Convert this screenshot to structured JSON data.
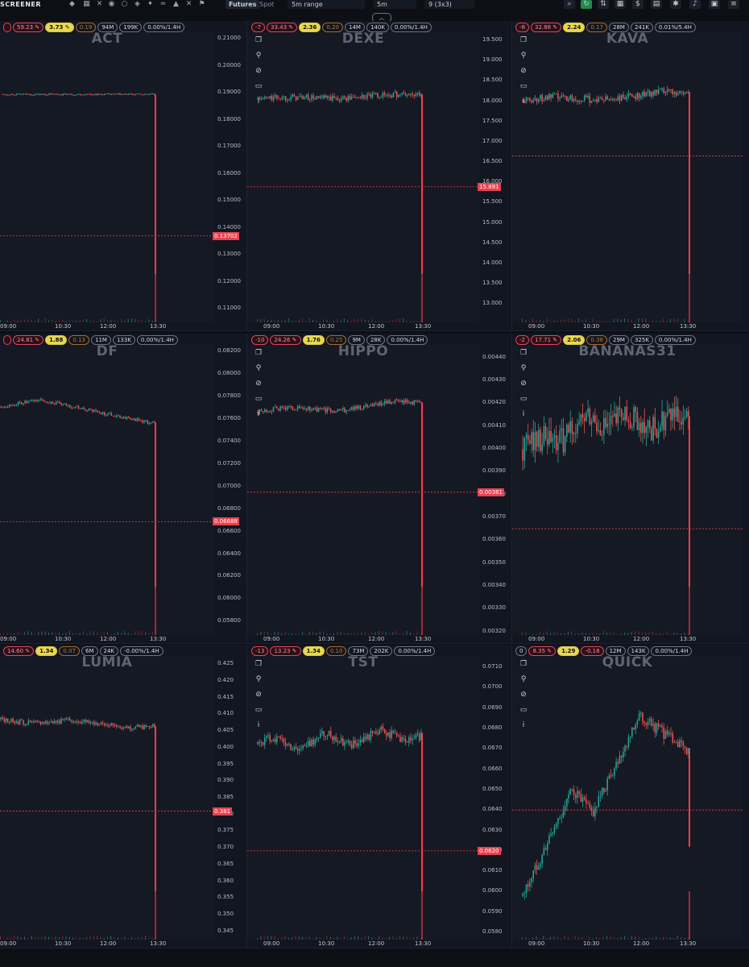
{
  "topbar": {
    "logo": "SCREENER",
    "market_type": "Futures",
    "market_spot": "Spot",
    "range_select": "5m range",
    "interval_select": "5m",
    "layout_select": "9 (3x3)"
  },
  "x_ticks": [
    "09:00",
    "10:30",
    "12:00",
    "13:30"
  ],
  "colors": {
    "up": "#26a69a",
    "down": "#ef5350",
    "drop": "#ff3b4e",
    "price_line": "#e8414f"
  },
  "panels": [
    {
      "symbol": "ACT",
      "badges": [
        {
          "text": "",
          "style": "red"
        },
        {
          "text": "59.23",
          "style": "red",
          "icon": "flame"
        },
        {
          "text": "3.73",
          "style": "yel",
          "icon": "flame"
        },
        {
          "text": "0.19",
          "style": "org"
        },
        {
          "text": "94M"
        },
        {
          "text": "199K"
        },
        {
          "text": "0.00%/1.4H"
        }
      ],
      "y_ticks": [
        "0.21000",
        "0.20000",
        "0.19000",
        "0.18000",
        "0.17000",
        "0.16000",
        "0.15000",
        "0.14000",
        "0.13000",
        "0.12000",
        "0.11000"
      ],
      "y_range": [
        0.105,
        0.2125
      ],
      "current_price": "0.13702",
      "price_value": 0.13702,
      "series": {
        "type": "flat",
        "level": 0.1895,
        "noise": 0.0002,
        "drop_to": 0.107
      }
    },
    {
      "symbol": "DEXE",
      "badges": [
        {
          "text": "-7",
          "style": "red"
        },
        {
          "text": "33.43",
          "style": "red",
          "icon": "flame"
        },
        {
          "text": "2.36",
          "style": "yel"
        },
        {
          "text": "0.20",
          "style": "org"
        },
        {
          "text": "14M"
        },
        {
          "text": "140K"
        },
        {
          "text": "0.00%/1.4H"
        }
      ],
      "y_ticks": [
        "19.500",
        "19.000",
        "18.500",
        "18.000",
        "17.500",
        "17.000",
        "16.500",
        "16.000",
        "15.500",
        "15.000",
        "14.500",
        "14.000",
        "13.500",
        "13.000"
      ],
      "y_range": [
        12.55,
        19.7
      ],
      "current_price": "15.891",
      "price_value": 15.891,
      "series": {
        "type": "drift",
        "start": 18.05,
        "end": 18.15,
        "noise": 0.05,
        "drop_to": 12.8
      }
    },
    {
      "symbol": "KAVA",
      "badges": [
        {
          "text": "-8",
          "style": "red"
        },
        {
          "text": "32.88",
          "style": "red",
          "icon": "flame"
        },
        {
          "text": "2.24",
          "style": "yel"
        },
        {
          "text": "0.17",
          "style": "org"
        },
        {
          "text": "28M"
        },
        {
          "text": "241K"
        },
        {
          "text": "0.01%/5.4H"
        }
      ],
      "y_ticks": [],
      "y_range": [
        12.55,
        19.7
      ],
      "current_price": "",
      "price_value": 16.65,
      "series": {
        "type": "drift",
        "start": 18.0,
        "end": 18.2,
        "noise": 0.06,
        "drop_to": 12.8
      }
    },
    {
      "symbol": "DF",
      "badges": [
        {
          "text": "",
          "style": "red"
        },
        {
          "text": "24.81",
          "style": "red",
          "icon": "flame"
        },
        {
          "text": "1.88",
          "style": "yel"
        },
        {
          "text": "0.13",
          "style": "org"
        },
        {
          "text": "11M"
        },
        {
          "text": "133K"
        },
        {
          "text": "0.00%/1.4H"
        }
      ],
      "y_ticks": [
        "0.08200",
        "0.08000",
        "0.07800",
        "0.07600",
        "0.07400",
        "0.07200",
        "0.07000",
        "0.06800",
        "0.06600",
        "0.06400",
        "0.06200",
        "0.06000",
        "0.05800"
      ],
      "y_range": [
        0.0568,
        0.0826
      ],
      "current_price": "0.06688",
      "price_value": 0.06688,
      "series": {
        "type": "hump",
        "start": 0.0771,
        "peak": 0.0777,
        "end": 0.0756,
        "noise": 0.0001,
        "drop_to": 0.0572
      }
    },
    {
      "symbol": "HIPPO",
      "badges": [
        {
          "text": "-10",
          "style": "red"
        },
        {
          "text": "24.26",
          "style": "red",
          "icon": "flame"
        },
        {
          "text": "1.76",
          "style": "yel"
        },
        {
          "text": "0.25",
          "style": "org"
        },
        {
          "text": "9M"
        },
        {
          "text": "28K"
        },
        {
          "text": "0.00%/1.4H"
        }
      ],
      "y_ticks": [
        "0.00440",
        "0.00430",
        "0.00420",
        "0.00410",
        "0.00400",
        "0.00390",
        "0.00380",
        "0.00370",
        "0.00360",
        "0.00350",
        "0.00340",
        "0.00330",
        "0.00320"
      ],
      "y_range": [
        0.003185,
        0.004455
      ],
      "current_price": "0.00381",
      "price_value": 0.00381,
      "series": {
        "type": "drift",
        "start": 0.00416,
        "end": 0.0042,
        "noise": 7e-06,
        "drop_to": 0.0032
      }
    },
    {
      "symbol": "BANANAS31",
      "badges": [
        {
          "text": "-2",
          "style": "red"
        },
        {
          "text": "17.71",
          "style": "red",
          "icon": "flame"
        },
        {
          "text": "2.06",
          "style": "yel"
        },
        {
          "text": "0.38",
          "style": "org"
        },
        {
          "text": "29M"
        },
        {
          "text": "325K"
        },
        {
          "text": "0.00%/1.4H"
        }
      ],
      "y_ticks": [],
      "y_range": [
        0.003185,
        0.004455
      ],
      "current_price": "",
      "price_value": 0.00365,
      "series": {
        "type": "volatile",
        "start": 0.004,
        "end": 0.00412,
        "noise": 4e-05,
        "drop_to": 0.0032
      }
    },
    {
      "symbol": "LUMIA",
      "badges": [
        {
          "text": "14.60",
          "style": "red",
          "icon": "flame"
        },
        {
          "text": "1.34",
          "style": "yel"
        },
        {
          "text": "0.07",
          "style": "org"
        },
        {
          "text": "6M"
        },
        {
          "text": "24K"
        },
        {
          "text": "-0.00%/1.4H"
        }
      ],
      "y_ticks": [
        "0.425",
        "0.420",
        "0.415",
        "0.410",
        "0.405",
        "0.400",
        "0.395",
        "0.390",
        "0.385",
        "0.380",
        "0.375",
        "0.370",
        "0.365",
        "0.360",
        "0.355",
        "0.350",
        "0.345"
      ],
      "y_range": [
        0.3425,
        0.4275
      ],
      "current_price": "0.381",
      "price_value": 0.381,
      "series": {
        "type": "drift",
        "start": 0.4085,
        "end": 0.4065,
        "noise": 0.0005,
        "drop_to": 0.3445
      }
    },
    {
      "symbol": "TST",
      "badges": [
        {
          "text": "-13",
          "style": "red"
        },
        {
          "text": "13.23",
          "style": "red",
          "icon": "flame"
        },
        {
          "text": "1.34",
          "style": "yel"
        },
        {
          "text": "0.10",
          "style": "org"
        },
        {
          "text": "73M"
        },
        {
          "text": "202K"
        },
        {
          "text": "0.00%/1.4H"
        }
      ],
      "y_ticks": [
        "0.0710",
        "0.0700",
        "0.0690",
        "0.0680",
        "0.0670",
        "0.0660",
        "0.0650",
        "0.0640",
        "0.0630",
        "0.0620",
        "0.0610",
        "0.0600",
        "0.0590",
        "0.0580"
      ],
      "y_range": [
        0.05765,
        0.07155
      ],
      "current_price": "0.0620",
      "price_value": 0.062,
      "series": {
        "type": "wave",
        "start": 0.0672,
        "end": 0.0677,
        "noise": 0.00015,
        "drop_to": 0.0578
      }
    },
    {
      "symbol": "QUICK",
      "badges": [
        {
          "text": "0"
        },
        {
          "text": "8.35",
          "style": "red",
          "icon": "flame"
        },
        {
          "text": "1.29",
          "style": "yel"
        },
        {
          "text": "-0.18",
          "style": "red"
        },
        {
          "text": "12M"
        },
        {
          "text": "143K"
        },
        {
          "text": "0.00%/1.4H"
        }
      ],
      "y_ticks": [],
      "y_range": [
        0.05765,
        0.07155
      ],
      "current_price": "",
      "price_value": 0.064,
      "series": {
        "type": "rally",
        "start": 0.0598,
        "peak": 0.0686,
        "end": 0.0669,
        "noise": 0.0002,
        "drop_to": 0.0622
      }
    }
  ]
}
